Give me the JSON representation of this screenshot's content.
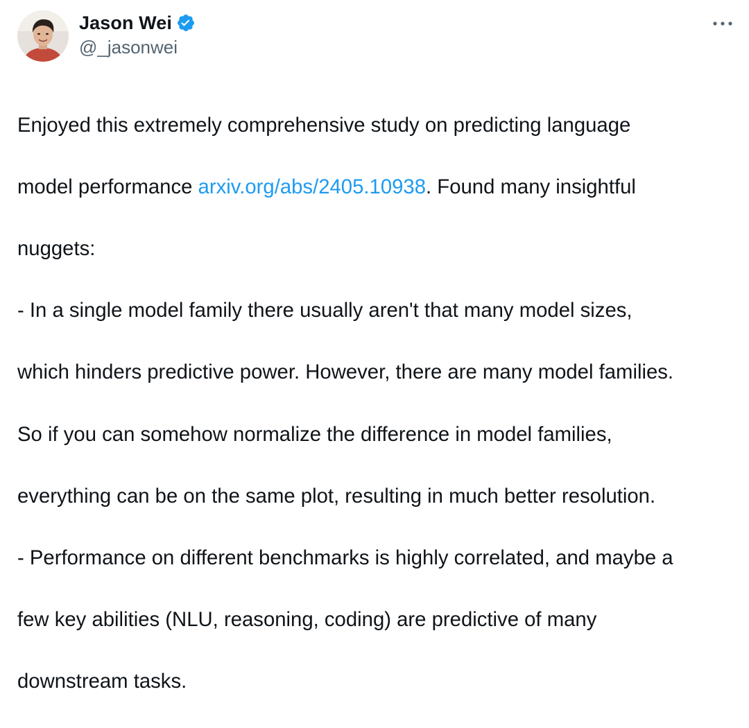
{
  "author": {
    "display_name": "Jason Wei",
    "handle": "@_jasonwei",
    "verified": true,
    "verified_icon": "verified-badge-icon",
    "accent_color": "#1d9bf0"
  },
  "menu": {
    "more_icon": "more-horizontal-icon"
  },
  "tweet": {
    "line1": "Enjoyed this extremely comprehensive study on predicting language",
    "line2_before": "model performance ",
    "link_text": "arxiv.org/abs/2405.10938",
    "line2_after": ". Found many insightful",
    "line3": "nuggets:",
    "line4": "- In a single model family there usually aren't that many model sizes,",
    "line5": "which hinders predictive power. However, there are many model families.",
    "line6": "So if you can somehow normalize the difference in model families,",
    "line7": "everything can be on the same plot, resulting in much better resolution.",
    "line8": "- Performance on different benchmarks is highly correlated, and maybe a",
    "line9": "few key abilities (NLU, reasoning, coding) are predictive of many",
    "line10": "downstream tasks."
  },
  "colors": {
    "text": "#0f1419",
    "secondary": "#536471",
    "link": "#1d9bf0"
  }
}
